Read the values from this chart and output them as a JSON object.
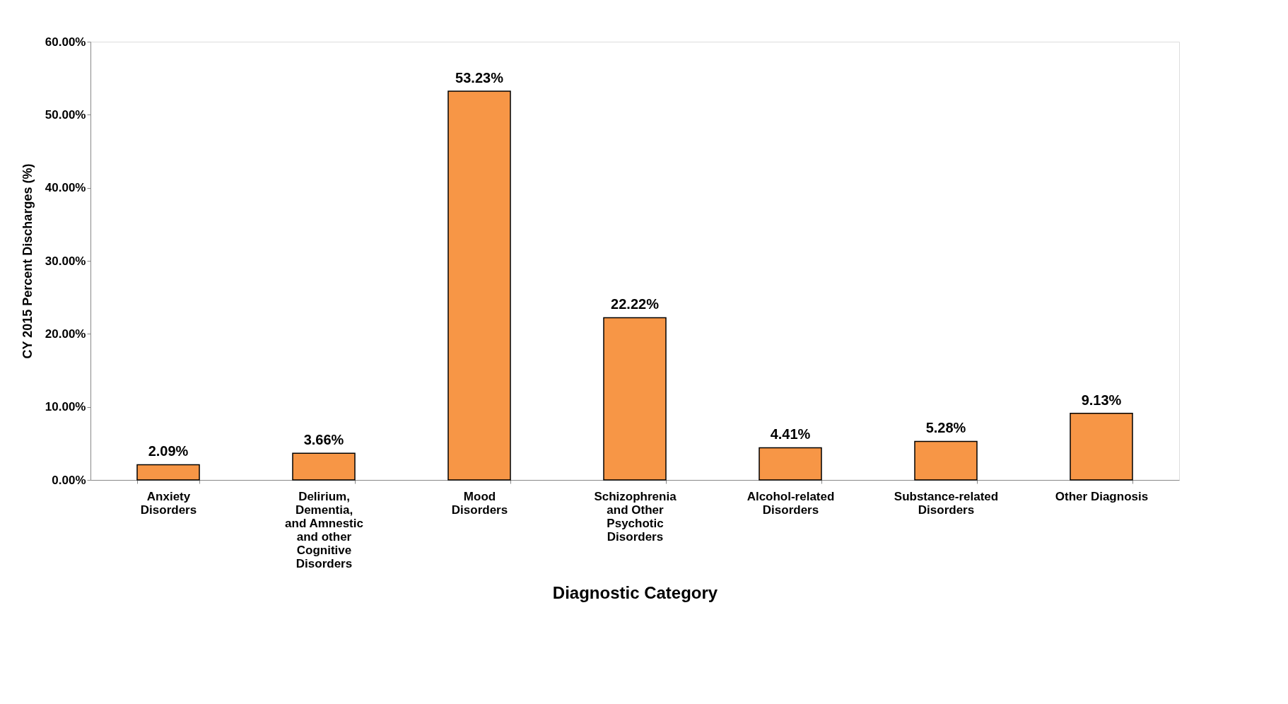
{
  "chart_data": {
    "type": "bar",
    "xlabel": "Diagnostic Category",
    "ylabel": "CY 2015 Percent Discharges (%)",
    "categories": [
      "Anxiety\nDisorders",
      "Delirium,\nDementia,\nand Amnestic\nand other\nCognitive\nDisorders",
      "Mood\nDisorders",
      "Schizophrenia\nand Other\nPsychotic\nDisorders",
      "Alcohol-related\nDisorders",
      "Substance-related\nDisorders",
      "Other Diagnosis"
    ],
    "values": [
      2.09,
      3.66,
      53.23,
      22.22,
      4.41,
      5.28,
      9.13
    ],
    "value_labels": [
      "2.09%",
      "3.66%",
      "53.23%",
      "22.22%",
      "4.41%",
      "5.28%",
      "9.13%"
    ],
    "color": "#f79646",
    "ylim": [
      0,
      60
    ],
    "yticks": [
      {
        "value": 0,
        "label": "0.00%"
      },
      {
        "value": 10,
        "label": "10.00%"
      },
      {
        "value": 20,
        "label": "20.00%"
      },
      {
        "value": 30,
        "label": "30.00%"
      },
      {
        "value": 40,
        "label": "40.00%"
      },
      {
        "value": 50,
        "label": "50.00%"
      },
      {
        "value": 60,
        "label": "60.00%"
      }
    ],
    "grid": false
  }
}
